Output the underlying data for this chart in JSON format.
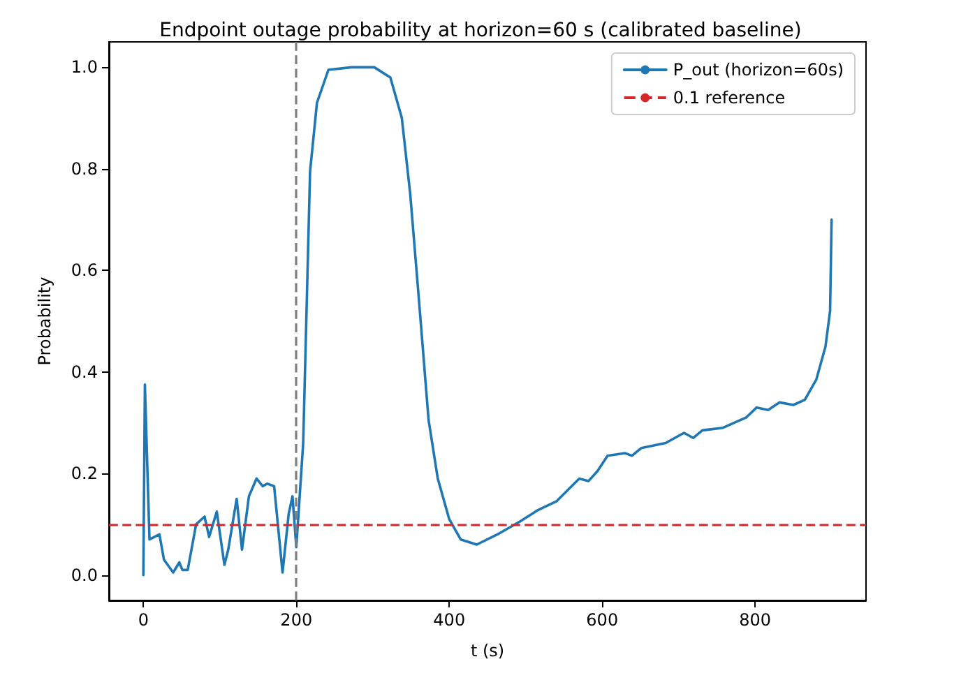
{
  "chart_data": {
    "type": "line",
    "title": "Endpoint outage probability at horizon=60 s (calibrated baseline)",
    "xlabel": "t (s)",
    "ylabel": "Probability",
    "series": [
      {
        "name": "P_out (horizon=60s)",
        "color": "#1f77b4",
        "x": [
          0,
          2,
          8,
          21,
          27,
          39,
          47,
          51,
          58,
          69,
          80,
          86,
          96,
          106,
          111,
          122,
          129,
          138,
          148,
          156,
          162,
          171,
          182,
          190,
          195,
          200,
          209,
          218,
          227,
          242,
          272,
          302,
          323,
          338,
          349,
          361,
          373,
          385,
          400,
          415,
          436,
          463,
          492,
          516,
          540,
          570,
          582,
          594,
          607,
          630,
          639,
          651,
          683,
          707,
          719,
          731,
          758,
          788,
          802,
          817,
          832,
          850,
          865,
          880,
          892,
          898,
          900
        ],
        "values": [
          0.0,
          0.375,
          0.07,
          0.08,
          0.03,
          0.005,
          0.025,
          0.01,
          0.01,
          0.1,
          0.115,
          0.075,
          0.125,
          0.02,
          0.05,
          0.15,
          0.05,
          0.155,
          0.19,
          0.175,
          0.18,
          0.175,
          0.005,
          0.12,
          0.155,
          0.055,
          0.26,
          0.795,
          0.93,
          0.995,
          1.0,
          1.0,
          0.98,
          0.9,
          0.75,
          0.53,
          0.305,
          0.19,
          0.11,
          0.07,
          0.06,
          0.08,
          0.105,
          0.128,
          0.145,
          0.19,
          0.185,
          0.205,
          0.235,
          0.24,
          0.235,
          0.25,
          0.26,
          0.28,
          0.27,
          0.285,
          0.29,
          0.31,
          0.33,
          0.325,
          0.34,
          0.335,
          0.345,
          0.385,
          0.45,
          0.52,
          0.7
        ]
      }
    ],
    "ref_lines": [
      {
        "axis": "y",
        "value": 0.1,
        "label": "0.1 reference",
        "color": "#d62728",
        "line_style": "dashed"
      },
      {
        "axis": "x",
        "value": 200,
        "color": "#7f7f7f",
        "line_style": "dashed"
      }
    ],
    "xlim": [
      -45,
      945
    ],
    "xticks": [
      0,
      200,
      400,
      600,
      800
    ],
    "ylim": [
      -0.05,
      1.05
    ],
    "yticks": [
      {
        "value": 0,
        "label": "0.0"
      },
      {
        "value": 0.2,
        "label": "0.2"
      },
      {
        "value": 0.4,
        "label": "0.4"
      },
      {
        "value": 0.6,
        "label": "0.6"
      },
      {
        "value": 0.8,
        "label": "0.8"
      },
      {
        "value": 1,
        "label": "1.0"
      }
    ],
    "legend": "top right",
    "grid": false
  }
}
